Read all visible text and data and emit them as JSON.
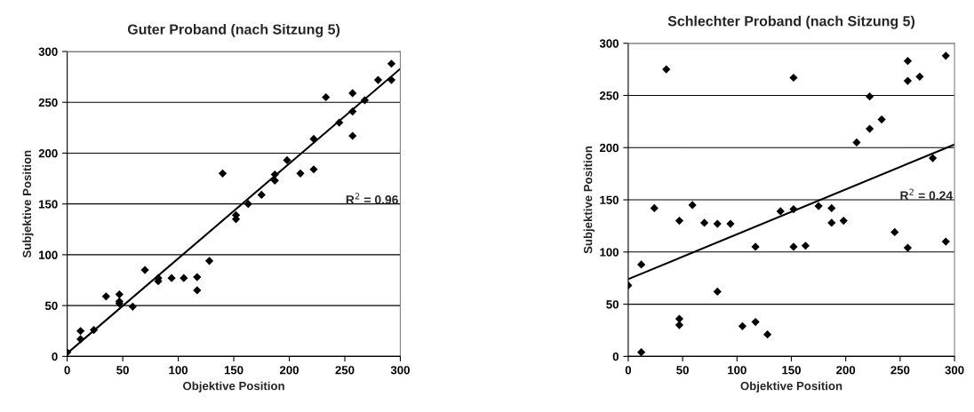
{
  "chart_data": [
    {
      "type": "scatter",
      "title": "Guter Proband (nach Sitzung 5)",
      "xlabel": "Objektive Position",
      "ylabel": "Subjektive Position",
      "xlim": [
        0,
        300
      ],
      "ylim": [
        0,
        300
      ],
      "xticks": [
        0,
        50,
        100,
        150,
        200,
        250,
        300
      ],
      "yticks": [
        0,
        50,
        100,
        150,
        200,
        250,
        300
      ],
      "grid": "y",
      "legend": false,
      "series": [
        {
          "marker": "diamond",
          "color": "#000000",
          "x": [
            0,
            12,
            12,
            24,
            35,
            47,
            47,
            47,
            59,
            70,
            82,
            82,
            94,
            105,
            117,
            117,
            128,
            140,
            152,
            152,
            163,
            175,
            187,
            187,
            198,
            210,
            222,
            222,
            233,
            245,
            257,
            257,
            257,
            268,
            280,
            292,
            292
          ],
          "values": [
            4,
            17,
            25,
            26,
            59,
            61,
            54,
            52,
            49,
            85,
            74,
            77,
            77,
            77,
            78,
            65,
            94,
            180,
            135,
            139,
            150,
            159,
            173,
            179,
            193,
            180,
            184,
            214,
            255,
            230,
            217,
            241,
            259,
            252,
            272,
            272,
            288
          ]
        },
        {
          "type": "line",
          "color": "#000000",
          "x": [
            0,
            300
          ],
          "values": [
            3,
            283
          ]
        }
      ],
      "annotations": [
        "R$^{2}$ = 0.96"
      ]
    },
    {
      "type": "scatter",
      "title": "Schlechter Proband (nach Sitzung 5)",
      "xlabel": "Objektive Position",
      "ylabel": "Subjektive Position",
      "xlim": [
        0,
        300
      ],
      "ylim": [
        0,
        300
      ],
      "xticks": [
        0,
        50,
        100,
        150,
        200,
        250,
        300
      ],
      "yticks": [
        0,
        50,
        100,
        150,
        200,
        250,
        300
      ],
      "grid": "y",
      "legend": false,
      "series": [
        {
          "marker": "diamond",
          "color": "#000000",
          "x": [
            0,
            12,
            12,
            24,
            35,
            47,
            47,
            47,
            59,
            70,
            82,
            82,
            94,
            105,
            117,
            117,
            128,
            140,
            152,
            152,
            152,
            163,
            175,
            187,
            187,
            198,
            210,
            222,
            222,
            233,
            245,
            257,
            257,
            257,
            268,
            280,
            292,
            292
          ],
          "values": [
            68,
            88,
            4,
            142,
            275,
            130,
            36,
            30,
            145,
            128,
            127,
            62,
            127,
            29,
            105,
            33,
            21,
            139,
            141,
            267,
            105,
            106,
            144,
            142,
            128,
            130,
            205,
            249,
            218,
            227,
            119,
            283,
            264,
            104,
            268,
            190,
            288,
            110
          ]
        },
        {
          "type": "line",
          "color": "#000000",
          "x": [
            0,
            300
          ],
          "values": [
            74,
            203
          ]
        }
      ],
      "annotations": [
        "R$^{2}$ = 0.24"
      ]
    }
  ]
}
